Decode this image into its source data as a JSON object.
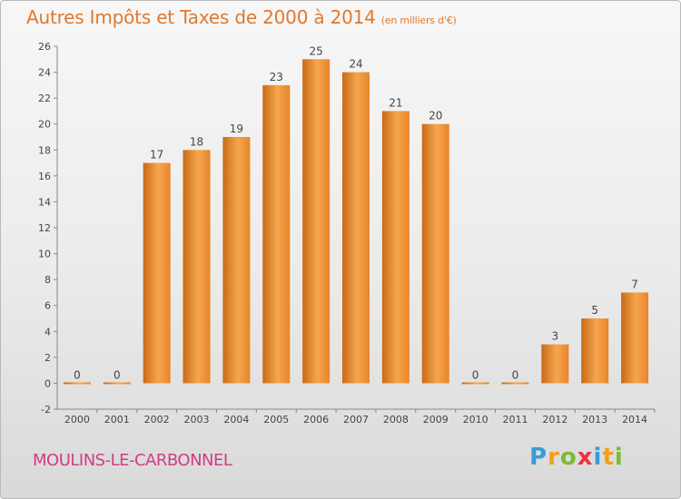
{
  "header": {
    "title": "Autres Impôts et Taxes de 2000 à 2014",
    "unit": "(en milliers d'€)"
  },
  "footer": {
    "commune": "MOULINS-LE-CARBONNEL",
    "logo_letters": [
      "P",
      "r",
      "o",
      "x",
      "i",
      "t",
      "i"
    ],
    "logo_colors": [
      "#3a9ad9",
      "#f0a01a",
      "#7dbb31",
      "#e8353b",
      "#3a9ad9",
      "#f0a01a",
      "#7dbb31"
    ]
  },
  "colors": {
    "bar": "#e8842a",
    "bar_light": "#f6a64e",
    "bar_dark": "#c96a17",
    "title": "#e0792e",
    "commune": "#d23c86",
    "grid": "#cfcfcf"
  },
  "chart_data": {
    "type": "bar",
    "title": "Autres Impôts et Taxes de 2000 à 2014",
    "subtitle": "(en milliers d'€)",
    "categories": [
      "2000",
      "2001",
      "2002",
      "2003",
      "2004",
      "2005",
      "2006",
      "2007",
      "2008",
      "2009",
      "2010",
      "2011",
      "2012",
      "2013",
      "2014"
    ],
    "values": [
      0,
      0,
      17,
      18,
      19,
      23,
      25,
      24,
      21,
      20,
      0,
      0,
      3,
      5,
      7
    ],
    "ylim": [
      -2,
      26
    ],
    "yticks": [
      -2,
      0,
      2,
      4,
      6,
      8,
      10,
      12,
      14,
      16,
      18,
      20,
      22,
      24,
      26
    ],
    "grid": false,
    "legend": false
  }
}
